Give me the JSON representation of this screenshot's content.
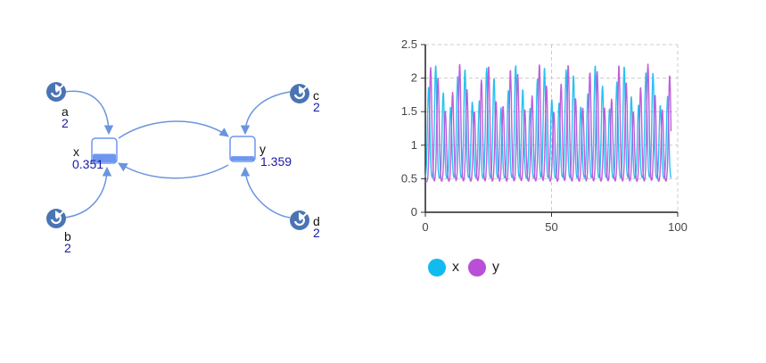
{
  "diagram": {
    "species": [
      {
        "name": "x",
        "value": "0.351",
        "level": 0.351
      },
      {
        "name": "y",
        "value": "1.359",
        "level": 0.18
      }
    ],
    "parameters": [
      {
        "name": "a",
        "value": "2"
      },
      {
        "name": "b",
        "value": "2"
      },
      {
        "name": "c",
        "value": "2"
      },
      {
        "name": "d",
        "value": "2"
      }
    ],
    "colors": {
      "node": "#4a74b4",
      "edge": "#6a95dd",
      "fill": "#6d96f0"
    },
    "icons": [
      "refresh-icon",
      "species-box-icon"
    ]
  },
  "chart_data": {
    "type": "line",
    "xlim": [
      0,
      100
    ],
    "ylim": [
      0,
      2.5
    ],
    "x_ticks": [
      "0",
      "50",
      "100"
    ],
    "y_ticks": [
      "0",
      "0.5",
      "1",
      "1.5",
      "2",
      "2.5"
    ],
    "grid": true,
    "legend_position": "bottom-left",
    "series": [
      {
        "name": "x",
        "color": "#11bbee",
        "peak_times": [
          1.3,
          4.1,
          7.1,
          10.0,
          12.8,
          15.7,
          18.6,
          21.4,
          24.3,
          27.2,
          30.0,
          32.9,
          35.8,
          38.6,
          41.5,
          44.4,
          47.2,
          50.1,
          53.0,
          55.8,
          58.7,
          61.6,
          64.4,
          67.3,
          70.2,
          73.0,
          75.9,
          78.8,
          81.6,
          84.5,
          87.4,
          90.2,
          93.1,
          96.0
        ],
        "baseline": 0.5,
        "peak_min": 1.55,
        "peak_max": 2.2
      },
      {
        "name": "y",
        "color": "#b84fd6",
        "peak_times": [
          2.1,
          5.0,
          7.9,
          10.8,
          13.6,
          16.5,
          19.4,
          22.2,
          25.1,
          28.0,
          30.8,
          33.7,
          36.6,
          39.4,
          42.3,
          45.2,
          48.0,
          50.9,
          53.8,
          56.6,
          59.5,
          62.4,
          65.2,
          68.1,
          71.0,
          73.8,
          76.7,
          79.6,
          82.4,
          85.3,
          88.2,
          91.0,
          93.9,
          96.8
        ],
        "baseline": 0.45,
        "peak_min": 1.5,
        "peak_max": 2.22
      }
    ],
    "legend": [
      {
        "label": "x",
        "color": "#11bbee"
      },
      {
        "label": "y",
        "color": "#b84fd6"
      }
    ]
  }
}
